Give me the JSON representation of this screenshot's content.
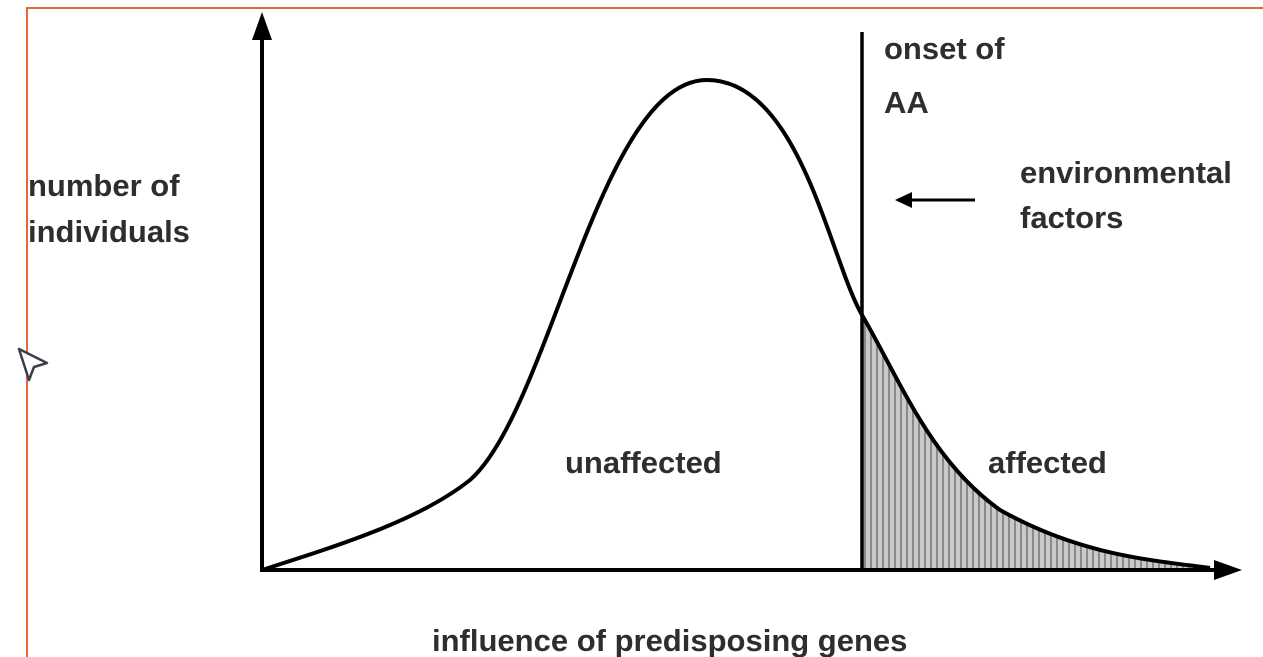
{
  "y_axis_label": [
    "number of",
    "individuals"
  ],
  "threshold_label": [
    "onset of",
    "AA"
  ],
  "arrow_label": [
    "environmental",
    "factors"
  ],
  "left_region_label": "unaffected",
  "right_region_label": "affected",
  "x_axis_label": "influence of predisposing genes"
}
